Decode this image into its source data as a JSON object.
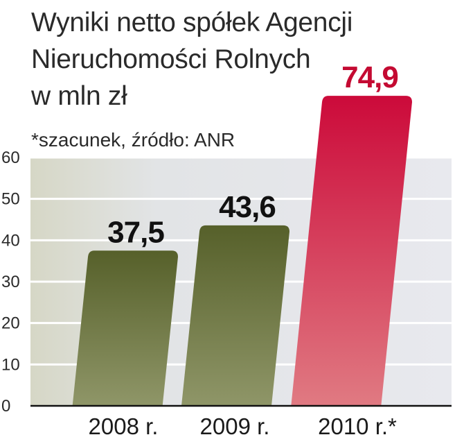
{
  "chart_data": {
    "type": "bar",
    "title": "Wyniki netto spółek Agencji\nNieruchomości Rolnych\nw mln zł",
    "note": "*szacunek, źródło: ANR",
    "categories": [
      "2008 r.",
      "2009 r.",
      "2010 r.*"
    ],
    "values": [
      37.5,
      43.6,
      74.9
    ],
    "value_labels": [
      "37,5",
      "43,6",
      "74,9"
    ],
    "ylim": [
      0,
      60
    ],
    "yticks": [
      0,
      10,
      20,
      30,
      40,
      50,
      60
    ],
    "grid": true,
    "colors": {
      "olive_top": "#56602a",
      "olive_bottom": "#8f9668",
      "red_top": "#cc0a3a",
      "red_bottom": "#e07a82",
      "value_dark": "#111111",
      "value_highlight": "#c40a32"
    }
  }
}
